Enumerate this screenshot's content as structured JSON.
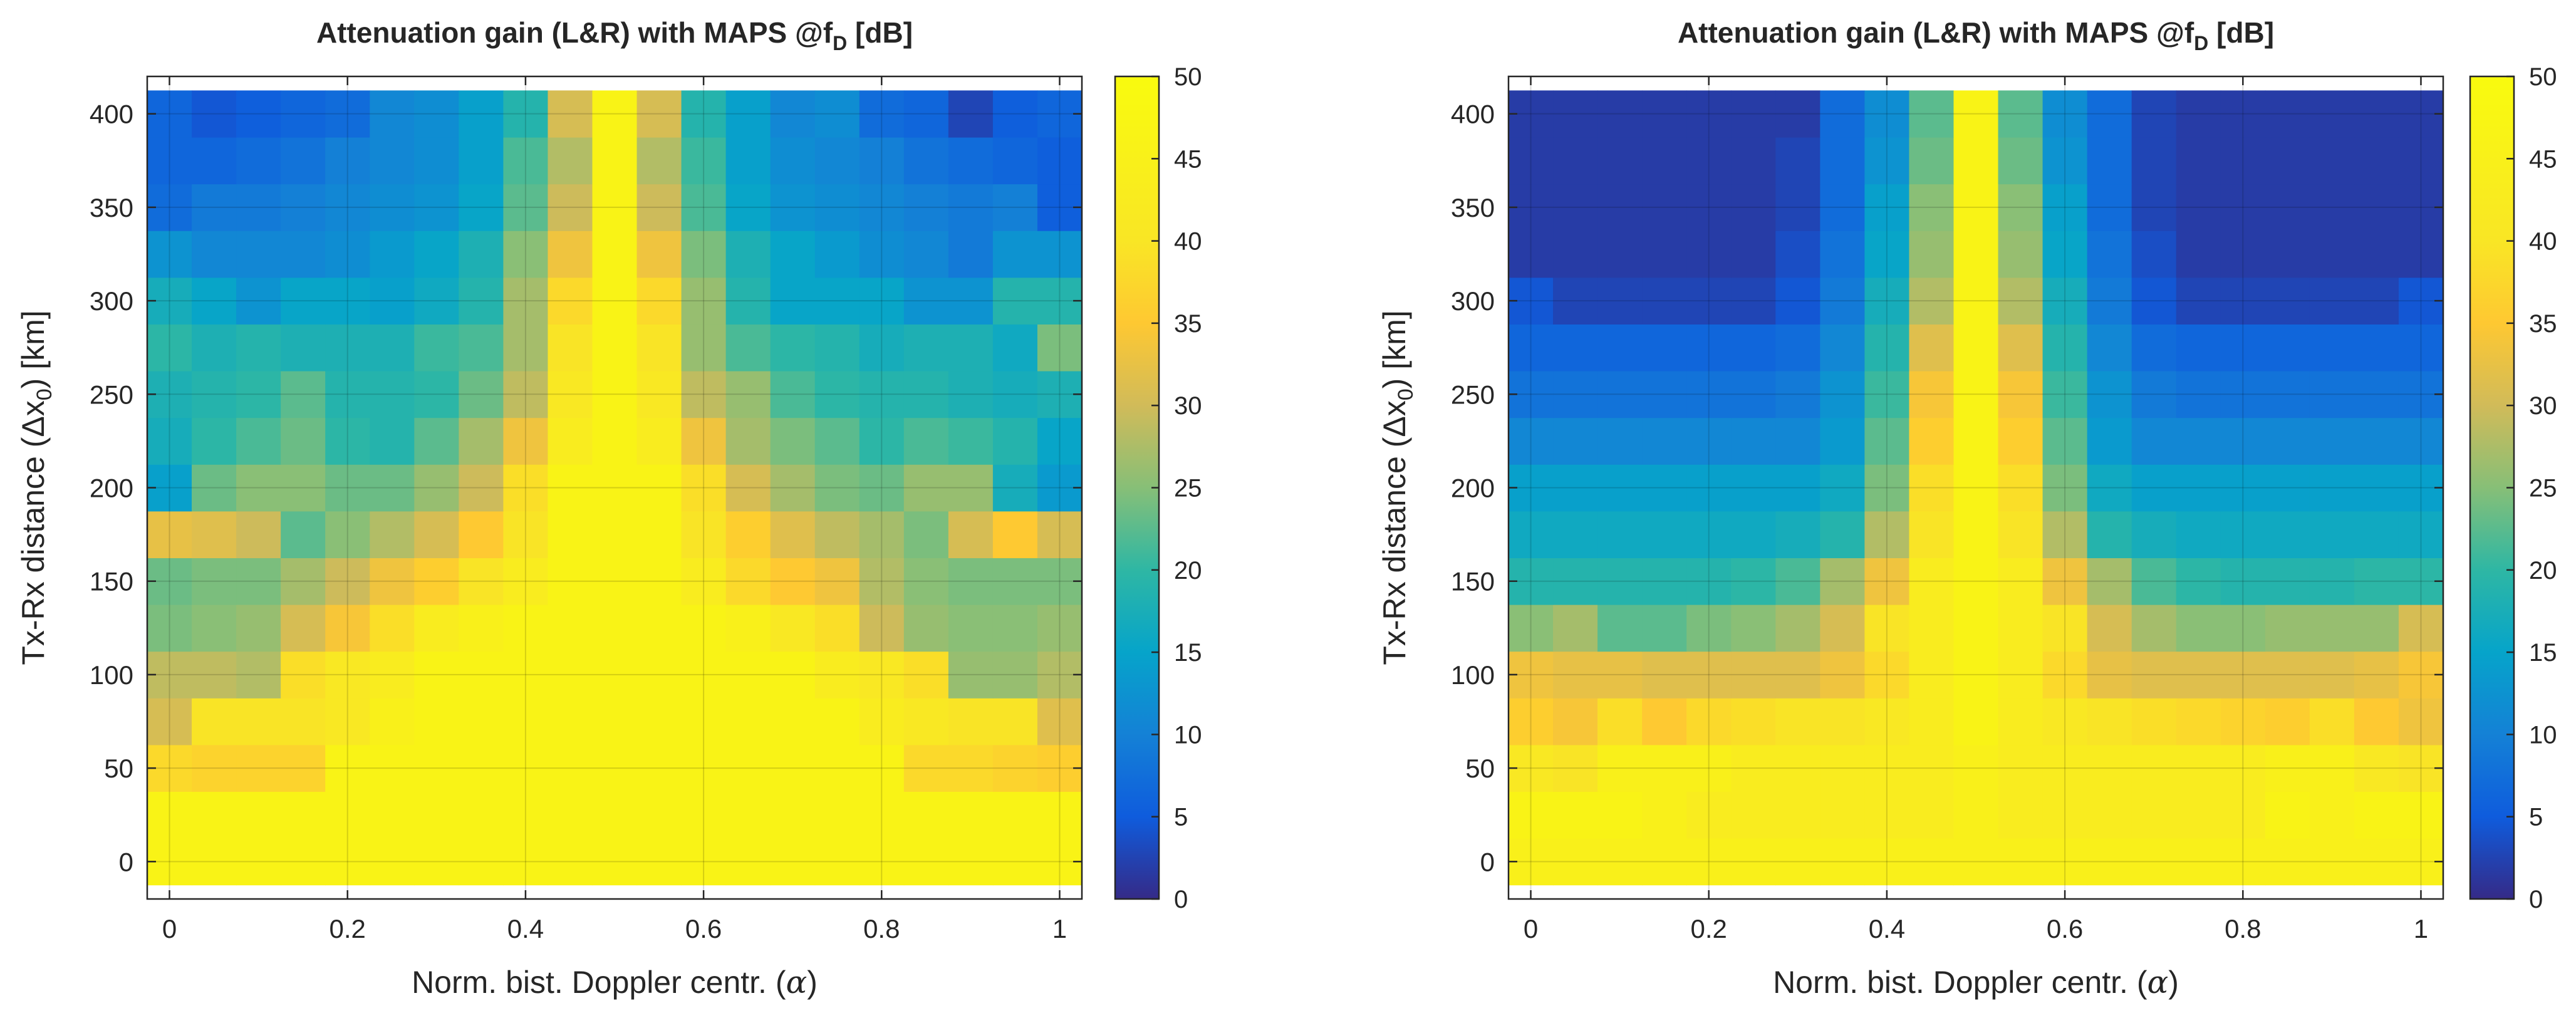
{
  "chart_data": [
    {
      "type": "heatmap",
      "title": "Attenuation gain (L&R) with MAPS @f",
      "title_sub": "D",
      "title_end": " [dB]",
      "xlabel": "Norm. bist. Doppler centr. (",
      "xlabel_symbol": "α",
      "xlabel_end": ")",
      "ylabel": "Tx-Rx distance (Δx",
      "ylabel_sub": "0",
      "ylabel_end": ") [km]",
      "x_ticks": [
        "0",
        "0.2",
        "0.4",
        "0.6",
        "0.8",
        "1"
      ],
      "y_ticks": [
        "0",
        "50",
        "100",
        "150",
        "200",
        "250",
        "300",
        "350",
        "400"
      ],
      "colorbar_ticks": [
        "0",
        "5",
        "10",
        "15",
        "20",
        "25",
        "30",
        "35",
        "40",
        "45",
        "50"
      ],
      "xlim": [
        -0.025,
        1.025
      ],
      "ylim": [
        -20,
        420
      ],
      "clim": [
        0,
        50
      ],
      "colormap": "parula",
      "x": [
        0,
        0.05,
        0.1,
        0.15,
        0.2,
        0.25,
        0.3,
        0.35,
        0.4,
        0.45,
        0.5,
        0.55,
        0.6,
        0.65,
        0.7,
        0.75,
        0.8,
        0.85,
        0.9,
        0.95,
        1
      ],
      "y": [
        0,
        25,
        50,
        75,
        100,
        125,
        150,
        175,
        200,
        225,
        250,
        275,
        300,
        325,
        350,
        375,
        400
      ],
      "z": [
        [
          48,
          48,
          48,
          48,
          48,
          48,
          48,
          48,
          48,
          48,
          48,
          48,
          48,
          48,
          48,
          48,
          48,
          48,
          48,
          48,
          48
        ],
        [
          48,
          48,
          48,
          48,
          48,
          48,
          48,
          48,
          48,
          48,
          48,
          48,
          48,
          48,
          48,
          48,
          48,
          48,
          48,
          48,
          48
        ],
        [
          42,
          41,
          41,
          41,
          48,
          48,
          48,
          48,
          48,
          48,
          48,
          48,
          48,
          48,
          48,
          48,
          48,
          42,
          42,
          41,
          40
        ],
        [
          34,
          44,
          44,
          44,
          45,
          47,
          48,
          48,
          48,
          48,
          48,
          48,
          48,
          48,
          48,
          48,
          46,
          45,
          44,
          44,
          35
        ],
        [
          32,
          32,
          31,
          43,
          45,
          46,
          48,
          48,
          48,
          48,
          48,
          48,
          48,
          48,
          48,
          46,
          45,
          43,
          29,
          29,
          31
        ],
        [
          27,
          28,
          29,
          34,
          38,
          43,
          46,
          47,
          48,
          48,
          48,
          48,
          48,
          47,
          45,
          43,
          33,
          29,
          28,
          28,
          29
        ],
        [
          26,
          27,
          27,
          30,
          33,
          37,
          40,
          44,
          46,
          48,
          48,
          48,
          46,
          42,
          39,
          37,
          31,
          28,
          27,
          27,
          27
        ],
        [
          36,
          35,
          33,
          25,
          28,
          31,
          34,
          39,
          44,
          48,
          48,
          48,
          44,
          40,
          35,
          32,
          30,
          27,
          34,
          39,
          34
        ],
        [
          16,
          26,
          28,
          28,
          26,
          26,
          29,
          33,
          43,
          48,
          48,
          48,
          43,
          34,
          30,
          27,
          26,
          29,
          29,
          19,
          15
        ],
        [
          19,
          22,
          24,
          26,
          22,
          21,
          25,
          30,
          37,
          46,
          48,
          46,
          37,
          30,
          27,
          25,
          22,
          24,
          23,
          21,
          17
        ],
        [
          20,
          21,
          22,
          25,
          21,
          21,
          22,
          26,
          32,
          45,
          48,
          45,
          32,
          29,
          24,
          22,
          21,
          21,
          20,
          19,
          20
        ],
        [
          22,
          20,
          21,
          20,
          20,
          20,
          23,
          24,
          30,
          44,
          48,
          44,
          29,
          24,
          22,
          21,
          19,
          20,
          20,
          18,
          27
        ],
        [
          19,
          17,
          14,
          17,
          17,
          16,
          18,
          21,
          30,
          42,
          48,
          42,
          29,
          21,
          17,
          17,
          17,
          14,
          14,
          21,
          21
        ],
        [
          14,
          12,
          12,
          12,
          13,
          15,
          17,
          20,
          28,
          37,
          48,
          37,
          27,
          20,
          17,
          15,
          13,
          12,
          10,
          14,
          14
        ],
        [
          8,
          10,
          10,
          11,
          12,
          13,
          14,
          17,
          25,
          33,
          48,
          33,
          24,
          17,
          14,
          13,
          12,
          11,
          10,
          11,
          6
        ],
        [
          7,
          7,
          8,
          9,
          11,
          12,
          13,
          16,
          24,
          31,
          48,
          31,
          23,
          16,
          13,
          12,
          11,
          9,
          8,
          7,
          6
        ],
        [
          7,
          5,
          6,
          7,
          8,
          12,
          13,
          16,
          21,
          34,
          48,
          34,
          21,
          16,
          12,
          13,
          8,
          7,
          3,
          6,
          7
        ]
      ]
    },
    {
      "type": "heatmap",
      "title": "Attenuation gain (L&R) with MAPS @f",
      "title_sub": "D",
      "title_end": " [dB]",
      "xlabel": "Norm. bist. Doppler centr. (",
      "xlabel_symbol": "α",
      "xlabel_end": ")",
      "ylabel": "Tx-Rx distance (Δx",
      "ylabel_sub": "0",
      "ylabel_end": ") [km]",
      "x_ticks": [
        "0",
        "0.2",
        "0.4",
        "0.6",
        "0.8",
        "1"
      ],
      "y_ticks": [
        "0",
        "50",
        "100",
        "150",
        "200",
        "250",
        "300",
        "350",
        "400"
      ],
      "colorbar_ticks": [
        "0",
        "5",
        "10",
        "15",
        "20",
        "25",
        "30",
        "35",
        "40",
        "45",
        "50"
      ],
      "xlim": [
        -0.025,
        1.025
      ],
      "ylim": [
        -20,
        420
      ],
      "clim": [
        0,
        50
      ],
      "colormap": "parula",
      "x": [
        0,
        0.05,
        0.1,
        0.15,
        0.2,
        0.25,
        0.3,
        0.35,
        0.4,
        0.45,
        0.5,
        0.55,
        0.6,
        0.65,
        0.7,
        0.75,
        0.8,
        0.85,
        0.9,
        0.95,
        1
      ],
      "y": [
        0,
        25,
        50,
        75,
        100,
        125,
        150,
        175,
        200,
        225,
        250,
        275,
        300,
        325,
        350,
        375,
        400
      ],
      "z": [
        [
          47,
          47,
          47,
          47,
          47,
          47,
          47,
          47,
          47,
          47,
          47,
          47,
          47,
          47,
          47,
          47,
          47,
          47,
          47,
          47,
          47
        ],
        [
          48,
          48,
          48,
          47,
          46,
          46,
          46,
          46,
          46,
          46,
          47,
          46,
          46,
          46,
          46,
          46,
          46,
          48,
          47,
          48,
          48
        ],
        [
          45,
          44,
          47,
          47,
          47,
          46,
          46,
          46,
          46,
          46,
          47,
          46,
          46,
          46,
          46,
          46,
          46,
          47,
          47,
          45,
          44
        ],
        [
          40,
          38,
          43,
          39,
          42,
          43,
          44,
          44,
          45,
          46,
          48,
          46,
          45,
          44,
          43,
          42,
          41,
          40,
          43,
          39,
          37
        ],
        [
          37,
          36,
          36,
          35,
          35,
          35,
          35,
          37,
          42,
          46,
          48,
          46,
          42,
          36,
          35,
          35,
          35,
          35,
          35,
          36,
          38
        ],
        [
          28,
          30,
          25,
          25,
          27,
          28,
          30,
          34,
          44,
          46,
          48,
          46,
          44,
          34,
          30,
          28,
          28,
          29,
          29,
          29,
          34
        ],
        [
          21,
          21,
          21,
          21,
          21,
          22,
          24,
          30,
          37,
          46,
          48,
          46,
          37,
          30,
          24,
          22,
          21,
          21,
          21,
          22,
          22
        ],
        [
          18,
          18,
          18,
          18,
          18,
          18,
          19,
          21,
          31,
          44,
          48,
          44,
          31,
          21,
          19,
          18,
          18,
          18,
          18,
          18,
          18
        ],
        [
          16,
          16,
          16,
          16,
          16,
          16,
          16,
          18,
          27,
          43,
          48,
          43,
          27,
          18,
          16,
          16,
          16,
          16,
          16,
          16,
          16
        ],
        [
          12,
          12,
          12,
          12,
          12,
          12,
          12,
          15,
          25,
          40,
          48,
          40,
          25,
          15,
          12,
          12,
          12,
          12,
          12,
          12,
          12
        ],
        [
          9,
          9,
          9,
          9,
          9,
          9,
          10,
          14,
          23,
          38,
          48,
          38,
          23,
          14,
          10,
          9,
          9,
          9,
          9,
          9,
          9
        ],
        [
          7,
          7,
          7,
          7,
          7,
          7,
          8,
          12,
          21,
          35,
          48,
          35,
          21,
          12,
          8,
          7,
          7,
          7,
          7,
          7,
          7
        ],
        [
          5,
          3,
          3,
          3,
          3,
          3,
          5,
          10,
          19,
          31,
          48,
          31,
          19,
          10,
          5,
          3,
          3,
          3,
          3,
          3,
          5
        ],
        [
          2,
          2,
          2,
          2,
          2,
          2,
          4,
          9,
          17,
          29,
          48,
          29,
          17,
          9,
          4,
          2,
          2,
          2,
          2,
          2,
          2
        ],
        [
          2,
          2,
          2,
          2,
          2,
          2,
          3,
          8,
          16,
          28,
          48,
          28,
          16,
          8,
          3,
          2,
          2,
          2,
          2,
          2,
          2
        ],
        [
          2,
          2,
          2,
          2,
          2,
          2,
          3,
          8,
          14,
          26,
          48,
          26,
          14,
          8,
          3,
          2,
          2,
          2,
          2,
          2,
          2
        ],
        [
          2,
          2,
          2,
          2,
          2,
          2,
          2,
          8,
          13,
          25,
          48,
          25,
          13,
          8,
          3,
          2,
          2,
          2,
          2,
          2,
          2
        ]
      ]
    }
  ]
}
